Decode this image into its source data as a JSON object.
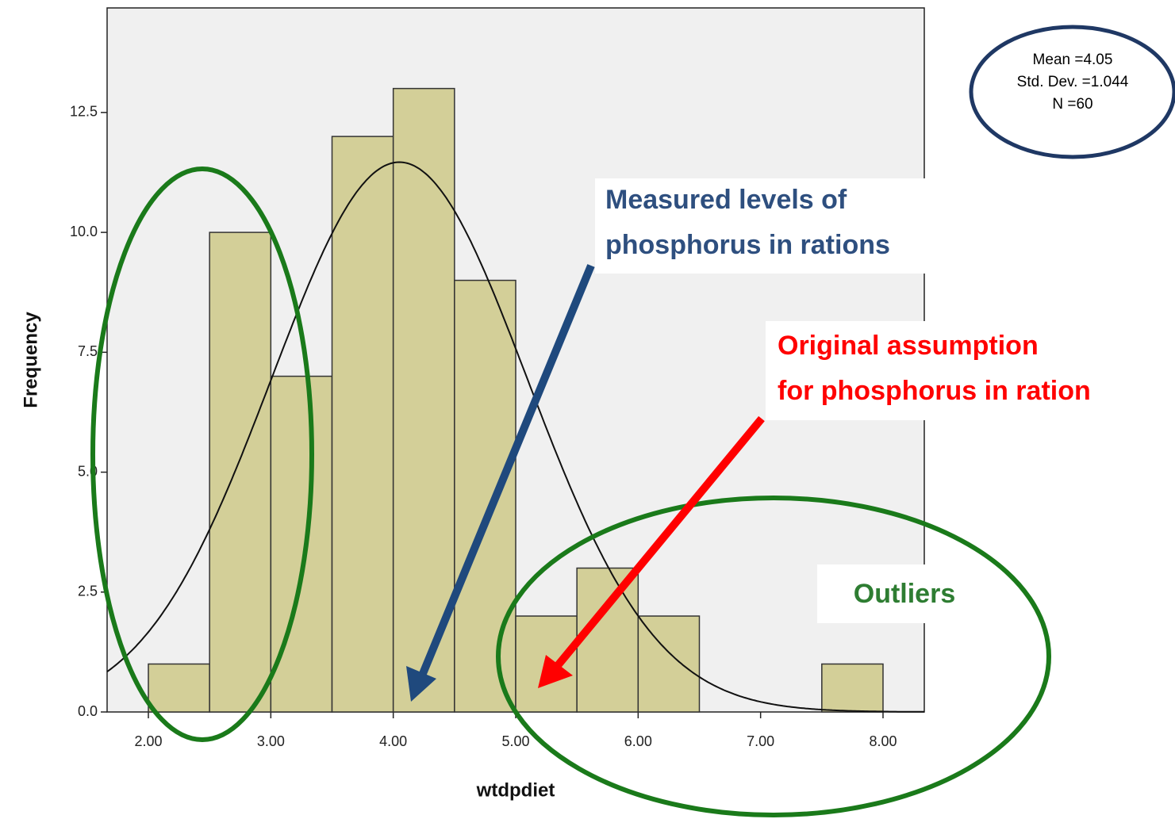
{
  "chart_data": {
    "type": "histogram",
    "x_label": "wtdpdiet",
    "y_label": "Frequency",
    "bins": [
      2.0,
      2.5,
      3.0,
      3.5,
      4.0,
      4.5,
      5.0,
      5.5,
      6.0,
      6.5,
      7.0,
      7.5,
      8.0
    ],
    "counts": [
      1,
      10,
      7,
      12,
      13,
      9,
      2,
      3,
      2,
      0,
      0,
      1
    ],
    "color": "#d3cf98",
    "xlim": [
      1.663,
      8.337
    ],
    "xticks": [
      {
        "value": 2,
        "label": "2.00"
      },
      {
        "value": 3,
        "label": "3.00"
      },
      {
        "value": 4,
        "label": "4.00"
      },
      {
        "value": 5,
        "label": "5.00"
      },
      {
        "value": 6,
        "label": "6.00"
      },
      {
        "value": 7,
        "label": "7.00"
      },
      {
        "value": 8,
        "label": "8.00"
      }
    ],
    "ylim": [
      0,
      14.68
    ],
    "yticks": [
      {
        "value": 0,
        "label": "0.0"
      },
      2.5,
      {
        "value": 5,
        "label": "5.0"
      },
      7.5,
      {
        "value": 10,
        "label": "10.0"
      },
      12.5
    ],
    "normal_curve": {
      "mean": 4.05,
      "std_dev": 1.044,
      "n": 60
    },
    "stats_box": [
      "Mean =4.05",
      "Std. Dev. =1.044",
      "N =60"
    ],
    "annotations": {
      "measured": [
        "Measured levels of",
        "phosphorus in rations"
      ],
      "original": [
        "Original assumption",
        "for phosphorus in ration"
      ],
      "outliers": "Outliers"
    }
  }
}
